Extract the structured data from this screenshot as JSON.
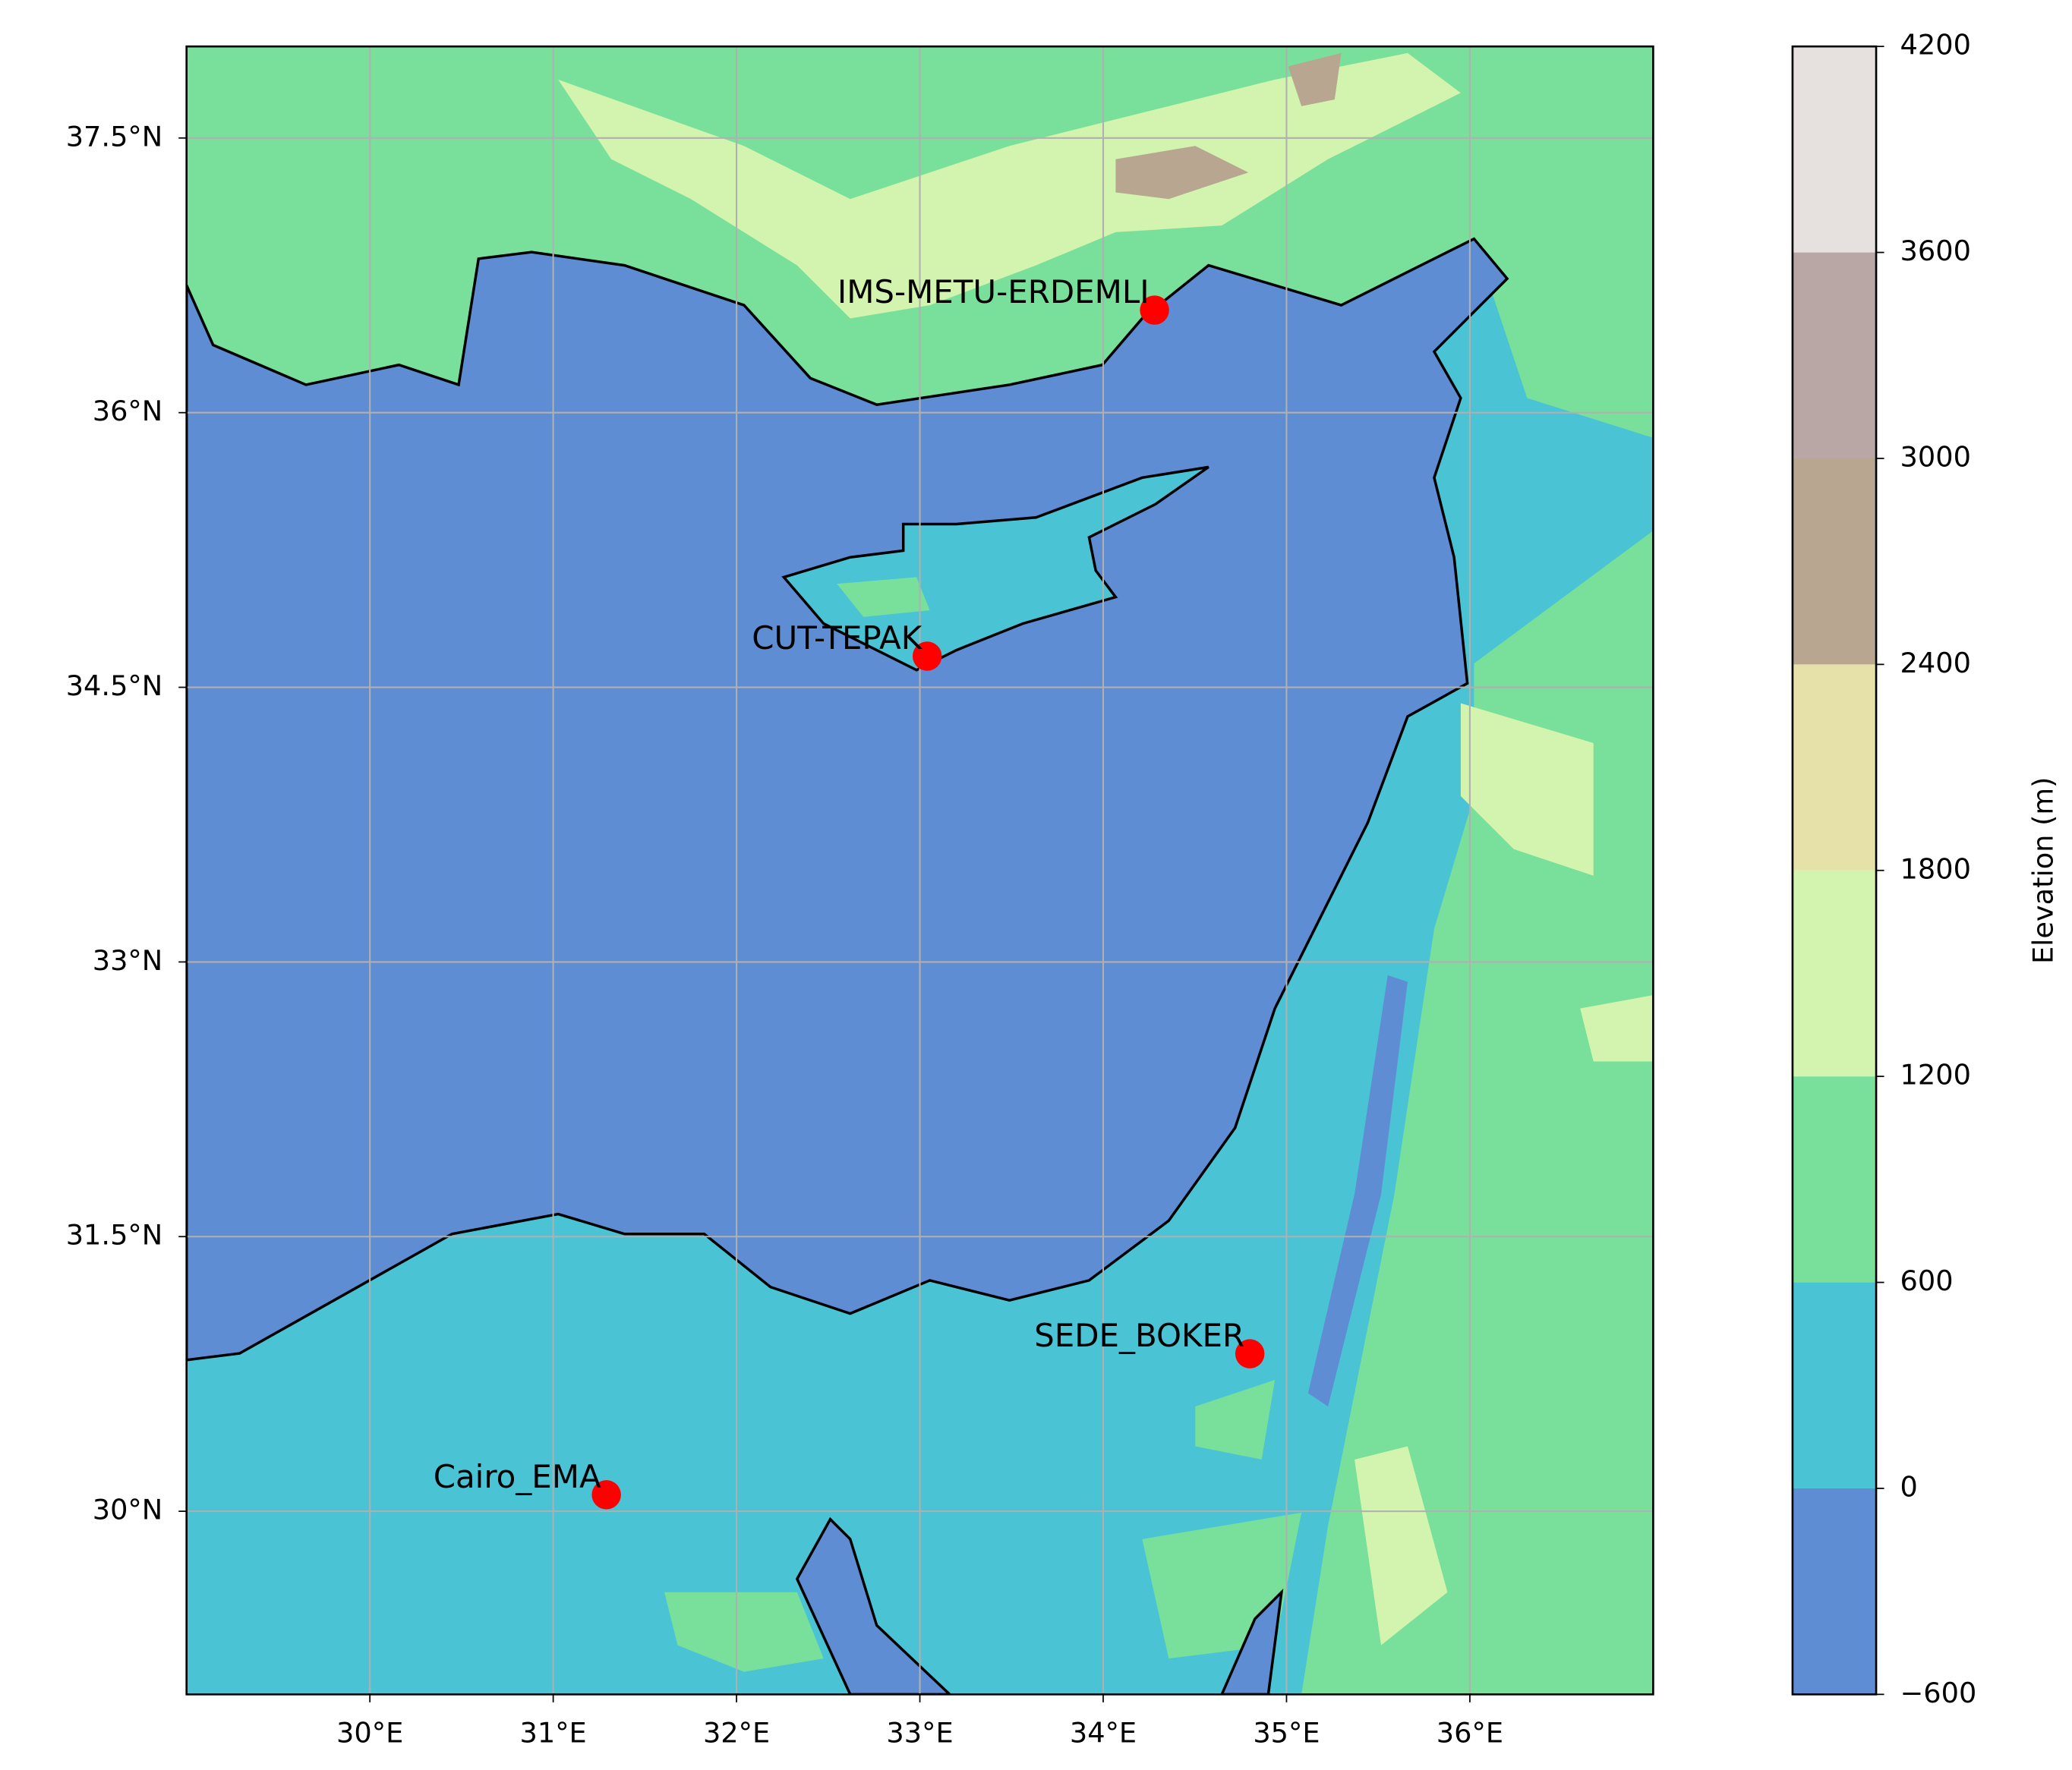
{
  "chart_data": {
    "type": "map",
    "xlim": [
      29,
      37
    ],
    "ylim": [
      29,
      38
    ],
    "xticks": [
      {
        "value": 30,
        "label": "30°E"
      },
      {
        "value": 31,
        "label": "31°E"
      },
      {
        "value": 32,
        "label": "32°E"
      },
      {
        "value": 33,
        "label": "33°E"
      },
      {
        "value": 34,
        "label": "34°E"
      },
      {
        "value": 35,
        "label": "35°E"
      },
      {
        "value": 36,
        "label": "36°E"
      }
    ],
    "yticks": [
      {
        "value": 30,
        "label": "30°N"
      },
      {
        "value": 31.5,
        "label": "31.5°N"
      },
      {
        "value": 33,
        "label": "33°N"
      },
      {
        "value": 34.5,
        "label": "34.5°N"
      },
      {
        "value": 36,
        "label": "36°N"
      },
      {
        "value": 37.5,
        "label": "37.5°N"
      }
    ],
    "grid": true,
    "marker_color": "#ff0000",
    "stations": [
      {
        "name": "IMS-METU-ERDEMLI",
        "lon": 34.28,
        "lat": 36.56
      },
      {
        "name": "CUT-TEPAK",
        "lon": 33.04,
        "lat": 34.67
      },
      {
        "name": "SEDE_BOKER",
        "lon": 34.8,
        "lat": 30.86
      },
      {
        "name": "Cairo_EMA",
        "lon": 31.29,
        "lat": 30.09
      }
    ],
    "colorbar": {
      "label": "Elevation (m)",
      "clim": [
        -600,
        4200
      ],
      "ticks": [
        {
          "value": -600,
          "label": "−600"
        },
        0,
        600,
        1200,
        1800,
        2400,
        3000,
        3600,
        4200
      ],
      "colors": [
        "#5f8dd3",
        "#4ac3d4",
        "#78e09a",
        "#d2f4ae",
        "#e6e1a9",
        "#b8a690",
        "#b8a7a5",
        "#e6e0df"
      ]
    }
  }
}
